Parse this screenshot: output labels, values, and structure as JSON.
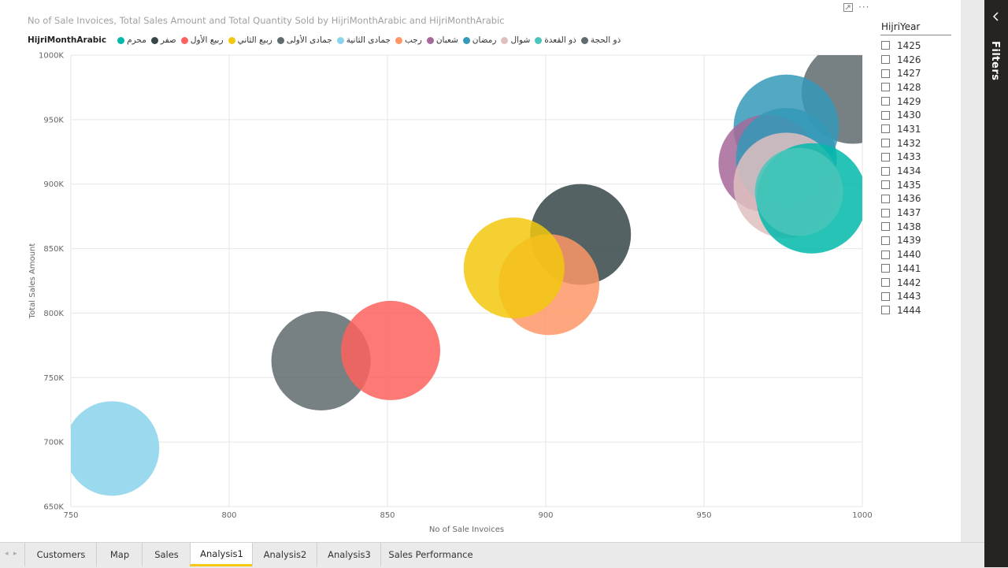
{
  "visual": {
    "title": "No of Sale Invoices, Total Sales Amount and Total Quantity Sold by HijriMonthArabic and HijriMonthArabic",
    "focus_icon": "focus-mode-icon",
    "more_icon": "more-options-icon",
    "more_label": "···"
  },
  "legend": {
    "title": "HijriMonthArabic",
    "items": [
      {
        "label": "محرم",
        "color": "#01B8AA"
      },
      {
        "label": "صفر",
        "color": "#374649"
      },
      {
        "label": "ربيع الأول",
        "color": "#FD625E"
      },
      {
        "label": "ربيع الثاني",
        "color": "#F2C80F"
      },
      {
        "label": "جمادى الأولى",
        "color": "#5F6B6D"
      },
      {
        "label": "جمادى الثانية",
        "color": "#8AD4EB"
      },
      {
        "label": "رجب",
        "color": "#FE9666"
      },
      {
        "label": "شعبان",
        "color": "#A66999"
      },
      {
        "label": "رمضان",
        "color": "#3599B8"
      },
      {
        "label": "شوال",
        "color": "#DFBFBF"
      },
      {
        "label": "ذو القعدة",
        "color": "#4AC5BB"
      },
      {
        "label": "ذو الحجة",
        "color": "#5F6B6D"
      }
    ]
  },
  "chart_data": {
    "type": "scatter",
    "xlabel": "No of Sale Invoices",
    "ylabel": "Total Sales Amount",
    "xlim": [
      750,
      1000
    ],
    "ylim": [
      650000,
      1000000
    ],
    "x_ticks": [
      750,
      800,
      850,
      900,
      950,
      1000
    ],
    "x_tick_labels": [
      "750",
      "800",
      "850",
      "900",
      "950",
      "1000"
    ],
    "y_ticks": [
      650000,
      700000,
      750000,
      800000,
      850000,
      900000,
      950000,
      1000000
    ],
    "y_tick_labels": [
      "650K",
      "700K",
      "750K",
      "800K",
      "850K",
      "900K",
      "950K",
      "1000K"
    ],
    "grid": true,
    "points": [
      {
        "series": "جمادى الثانية",
        "x": 763,
        "y": 695000,
        "size": 0.6,
        "color": "#8AD4EB"
      },
      {
        "series": "جمادى الأولى",
        "x": 829,
        "y": 763000,
        "size": 0.63,
        "color": "#5F6B6D"
      },
      {
        "series": "ربيع الأول",
        "x": 851,
        "y": 771000,
        "size": 0.63,
        "color": "#FD625E"
      },
      {
        "series": "صفر",
        "x": 911,
        "y": 861000,
        "size": 0.64,
        "color": "#374649"
      },
      {
        "series": "رجب",
        "x": 901,
        "y": 822000,
        "size": 0.64,
        "color": "#FE9666"
      },
      {
        "series": "ربيع الثاني",
        "x": 890,
        "y": 835000,
        "size": 0.64,
        "color": "#F2C80F"
      },
      {
        "series": "ذو الحجة",
        "x": 997,
        "y": 971000,
        "size": 0.65,
        "color": "#5F6B6D"
      },
      {
        "series": "رمضان",
        "x": 976,
        "y": 944000,
        "size": 0.67,
        "color": "#3599B8"
      },
      {
        "series": "شعبان",
        "x": 970,
        "y": 916000,
        "size": 0.62,
        "color": "#A66999"
      },
      {
        "series": "رمضان",
        "x": 976,
        "y": 920000,
        "size": 0.64,
        "color": "#3599B8"
      },
      {
        "series": "شوال",
        "x": 976,
        "y": 899000,
        "size": 0.67,
        "color": "#DFBFBF"
      },
      {
        "series": "محرم",
        "x": 984,
        "y": 889000,
        "size": 0.7,
        "color": "#01B8AA"
      },
      {
        "series": "ذو القعدة",
        "x": 980,
        "y": 894000,
        "size": 0.56,
        "color": "#4AC5BB"
      }
    ]
  },
  "filter": {
    "title": "HijriYear",
    "years": [
      "1425",
      "1426",
      "1427",
      "1428",
      "1429",
      "1430",
      "1431",
      "1432",
      "1433",
      "1434",
      "1435",
      "1436",
      "1437",
      "1438",
      "1439",
      "1440",
      "1441",
      "1442",
      "1443",
      "1444"
    ]
  },
  "filters_pane": {
    "label": "Filters",
    "icon": "chevron-left-icon"
  },
  "tabs": {
    "prev_label": "◂",
    "next_label": "▸",
    "active": "Analysis1",
    "items": [
      "Customers",
      "Map",
      "Sales",
      "Analysis1",
      "Analysis2",
      "Analysis3",
      "Sales Performance"
    ]
  }
}
